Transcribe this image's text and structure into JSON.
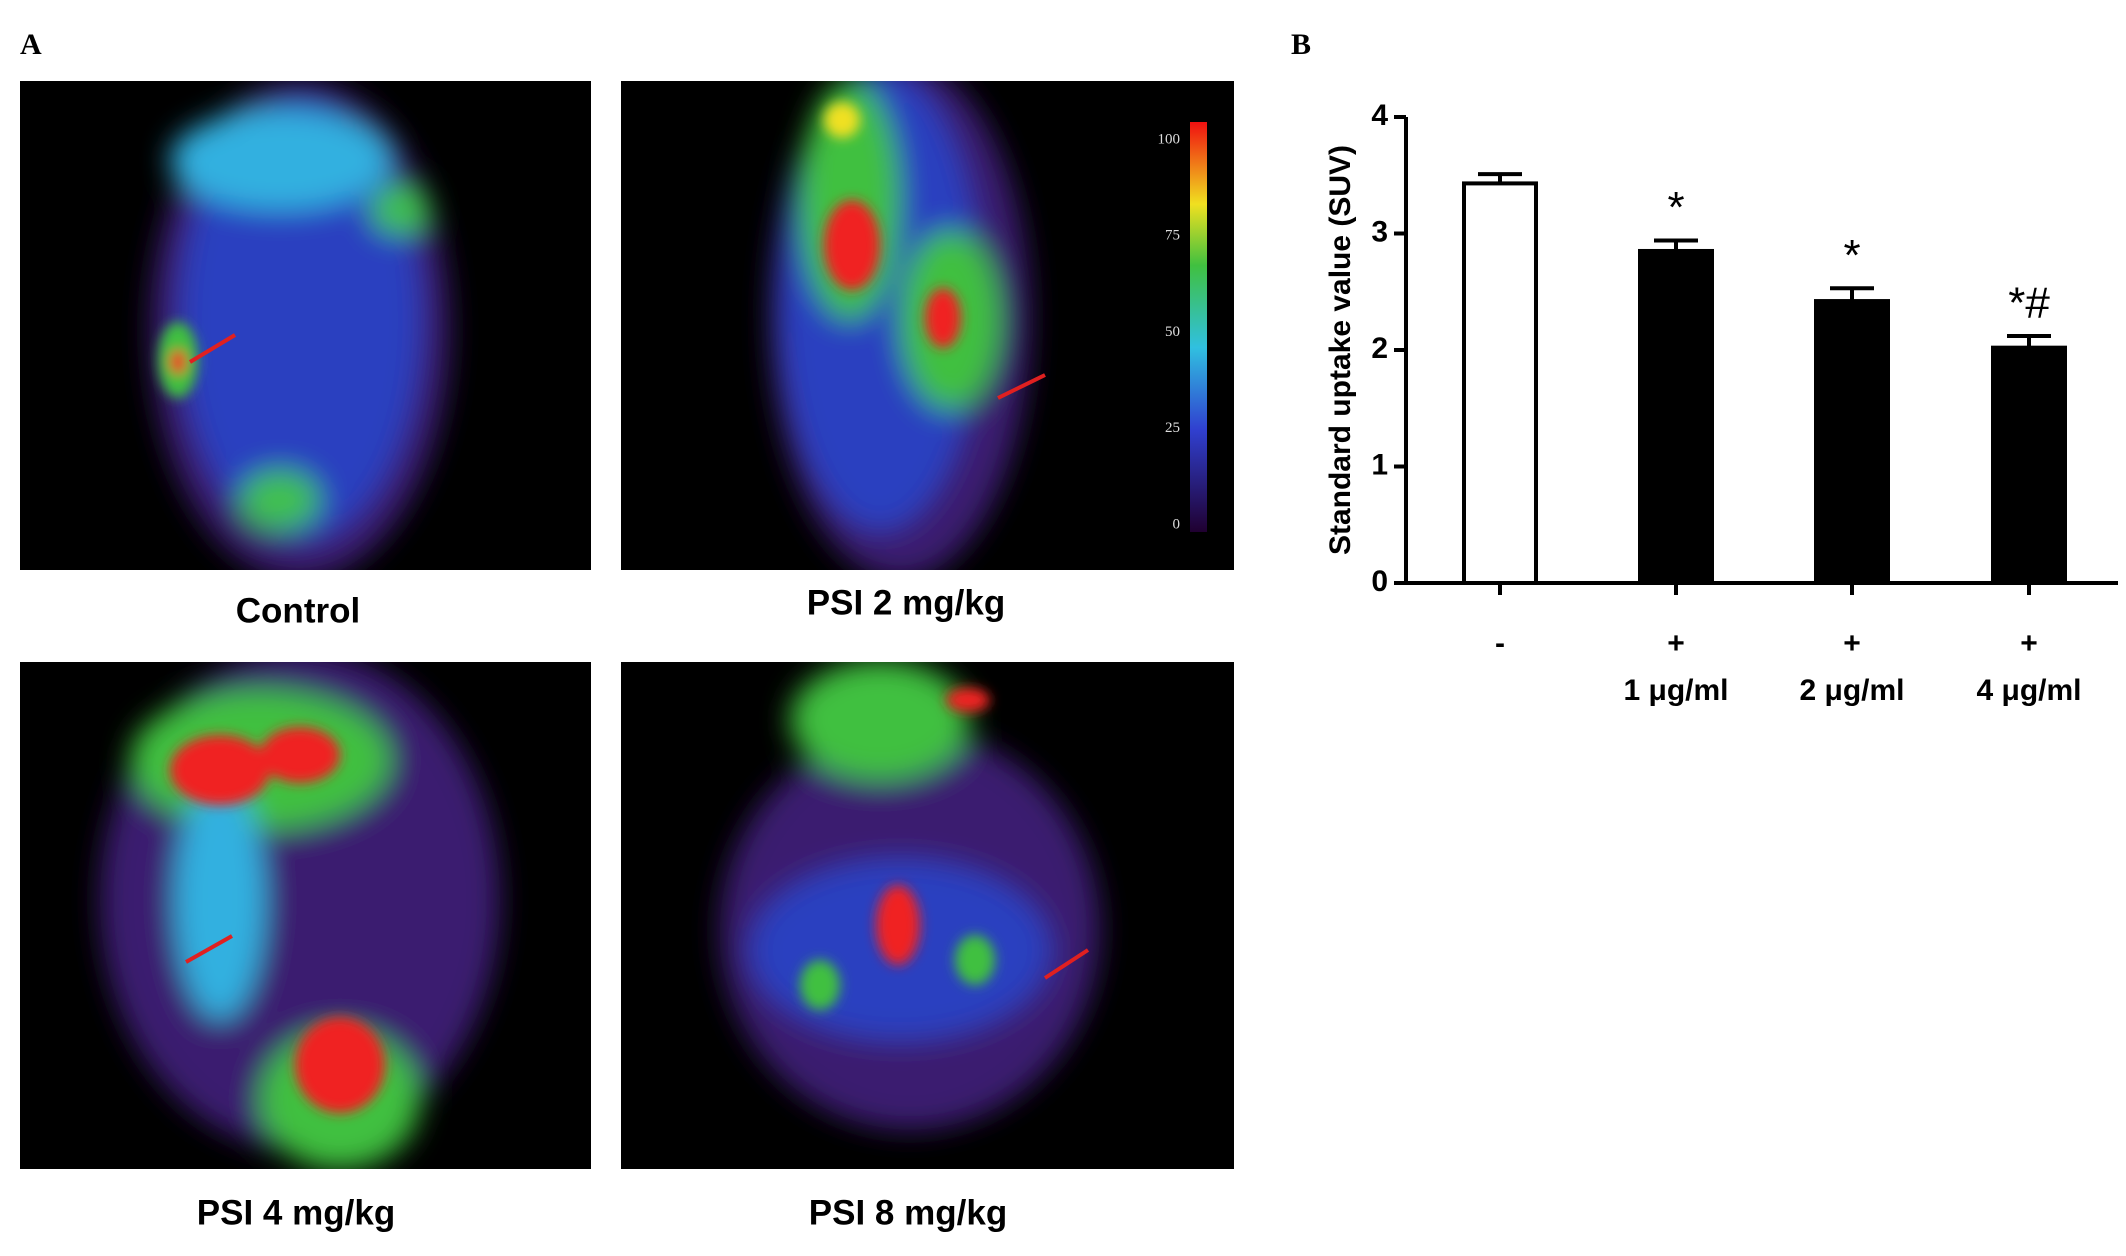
{
  "panels": {
    "a": "A",
    "b": "B"
  },
  "images": [
    {
      "caption": "Control"
    },
    {
      "caption": "PSI 2 mg/kg"
    },
    {
      "caption": "PSI 4 mg/kg"
    },
    {
      "caption": "PSI 8 mg/kg"
    }
  ],
  "colorbar": {
    "ticks": [
      0,
      25,
      50,
      75,
      100
    ]
  },
  "chart_data": {
    "type": "bar",
    "ylabel": "Standard uptake value (SUV)",
    "categories": [
      "-",
      "+",
      "+",
      "+"
    ],
    "sublabels": [
      null,
      "1 μg/ml",
      "2 μg/ml",
      "4 μg/ml"
    ],
    "values": [
      3.43,
      2.85,
      2.42,
      2.02
    ],
    "errors": [
      0.08,
      0.09,
      0.11,
      0.1
    ],
    "annotations": [
      null,
      "*",
      "*",
      "*#"
    ],
    "colors": [
      "#ffffff",
      "#000000",
      "#000000",
      "#000000"
    ],
    "ylim": [
      0,
      4
    ],
    "yticks": [
      0,
      1,
      2,
      3,
      4
    ]
  }
}
